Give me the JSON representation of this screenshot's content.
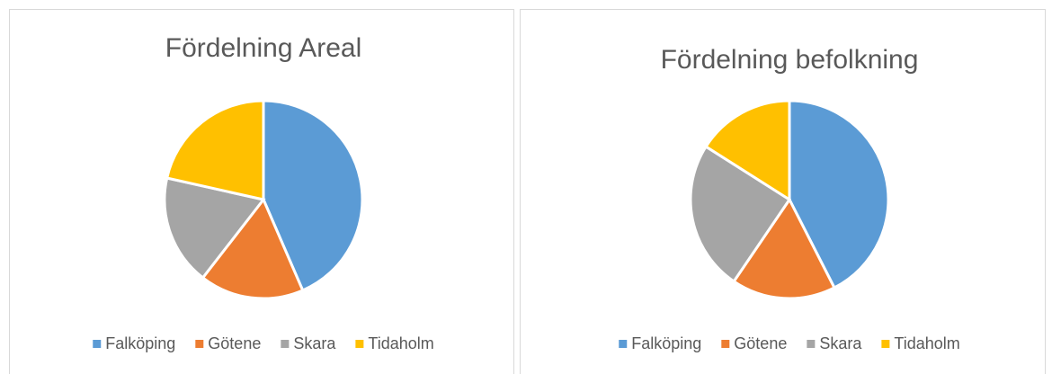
{
  "chart_data": [
    {
      "type": "pie",
      "title": "Fördelning Areal",
      "categories": [
        "Falköping",
        "Götene",
        "Skara",
        "Tidaholm"
      ],
      "values": [
        43.5,
        17,
        18,
        21.5
      ],
      "colors": [
        "#5b9bd5",
        "#ed7d31",
        "#a5a5a5",
        "#ffc000"
      ],
      "legend": "bottom"
    },
    {
      "type": "pie",
      "title": "Fördelning befolkning",
      "categories": [
        "Falköping",
        "Götene",
        "Skara",
        "Tidaholm"
      ],
      "values": [
        42.5,
        17,
        24.5,
        16
      ],
      "colors": [
        "#5b9bd5",
        "#ed7d31",
        "#a5a5a5",
        "#ffc000"
      ],
      "legend": "bottom"
    }
  ]
}
